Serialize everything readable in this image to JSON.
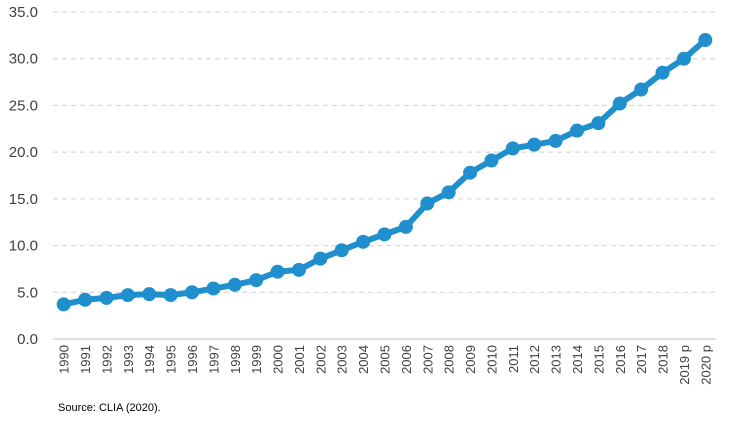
{
  "chart_data": {
    "type": "line",
    "title": "",
    "xlabel": "",
    "ylabel": "",
    "ylim": [
      0,
      35
    ],
    "yticks": [
      "0.0",
      "5.0",
      "10.0",
      "15.0",
      "20.0",
      "25.0",
      "30.0",
      "35.0"
    ],
    "grid": "horizontal dashed",
    "legend": "none",
    "categories": [
      "1990",
      "1991",
      "1992",
      "1993",
      "1994",
      "1995",
      "1996",
      "1997",
      "1998",
      "1999",
      "2000",
      "2001",
      "2002",
      "2003",
      "2004",
      "2005",
      "2006",
      "2007",
      "2008",
      "2009",
      "2010",
      "2011",
      "2012",
      "2013",
      "2014",
      "2015",
      "2016",
      "2017",
      "2018",
      "2019 p",
      "2020 p"
    ],
    "series": [
      {
        "color": "#1f8fce",
        "values": [
          3.7,
          4.2,
          4.4,
          4.7,
          4.8,
          4.7,
          5.0,
          5.4,
          5.8,
          6.3,
          7.2,
          7.4,
          8.6,
          9.5,
          10.4,
          11.2,
          12.0,
          14.5,
          15.7,
          17.8,
          19.1,
          20.4,
          20.8,
          21.2,
          22.3,
          23.1,
          25.2,
          26.7,
          28.5,
          30.0,
          32.0
        ]
      }
    ]
  },
  "source_text": "Source: CLIA (2020)."
}
